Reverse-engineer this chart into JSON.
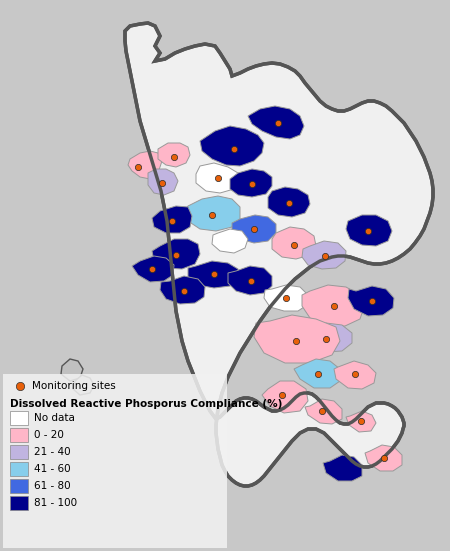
{
  "legend_title": "Dissolved Reactive Phosporus Compliance (%)",
  "legend_entries": [
    "No data",
    "0 - 20",
    "21 - 40",
    "41 - 60",
    "61 - 80",
    "81 - 100"
  ],
  "legend_colors": [
    "#FFFFFF",
    "#FFB6C8",
    "#C0B4E0",
    "#87CEEB",
    "#4169E1",
    "#00008B"
  ],
  "monitoring_label": "Monitoring sites",
  "monitoring_color": "#E8600A",
  "fig_bg": "#C8C8C8",
  "map_bg": "#F0F0F0",
  "outer_color": "#555555",
  "inner_color": "#999999",
  "figsize": [
    4.5,
    5.51
  ],
  "dpi": 100,
  "no_data": "#FFFFFF",
  "c0": "#FFB6C8",
  "c21": "#C0B4E0",
  "c41": "#87CEEB",
  "c61": "#4169E1",
  "c81": "#00008B"
}
